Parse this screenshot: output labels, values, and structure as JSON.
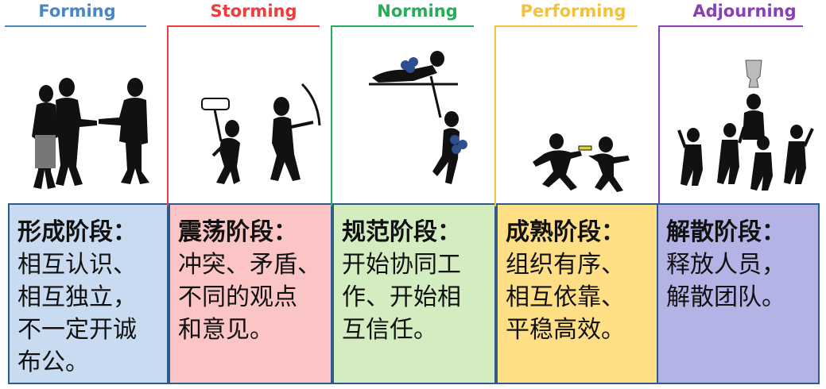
{
  "stages": [
    {
      "id": "forming",
      "title": "Forming",
      "title_color": "#4a86c5",
      "card_color": "#c9dbf0",
      "heading": "形成阶段：",
      "lines": [
        "相互认识、",
        "相互独立，",
        "不一定开诚",
        "布公。"
      ]
    },
    {
      "id": "storming",
      "title": "Storming",
      "title_color": "#ef3b3b",
      "card_color": "#fbc5c5",
      "heading": "震荡阶段：",
      "lines": [
        "冲突、矛盾、",
        "不同的观点",
        "和意见。"
      ]
    },
    {
      "id": "norming",
      "title": "Norming",
      "title_color": "#27ad5a",
      "card_color": "#d3ecc0",
      "heading": "规范阶段：",
      "lines": [
        "开始协同工",
        "作、开始相",
        "互信任。"
      ]
    },
    {
      "id": "performing",
      "title": "Performing",
      "title_color": "#f2c23c",
      "card_color": "#ffdf86",
      "heading": "成熟阶段：",
      "lines": [
        "组织有序、",
        "相互依靠、",
        "平稳高效。"
      ]
    },
    {
      "id": "adjourning",
      "title": "Adjourning",
      "title_color": "#8a3fb4",
      "card_color": "#b4b3e6",
      "heading": "解散阶段：",
      "lines": [
        "释放人员，",
        "解散团队。"
      ]
    }
  ]
}
